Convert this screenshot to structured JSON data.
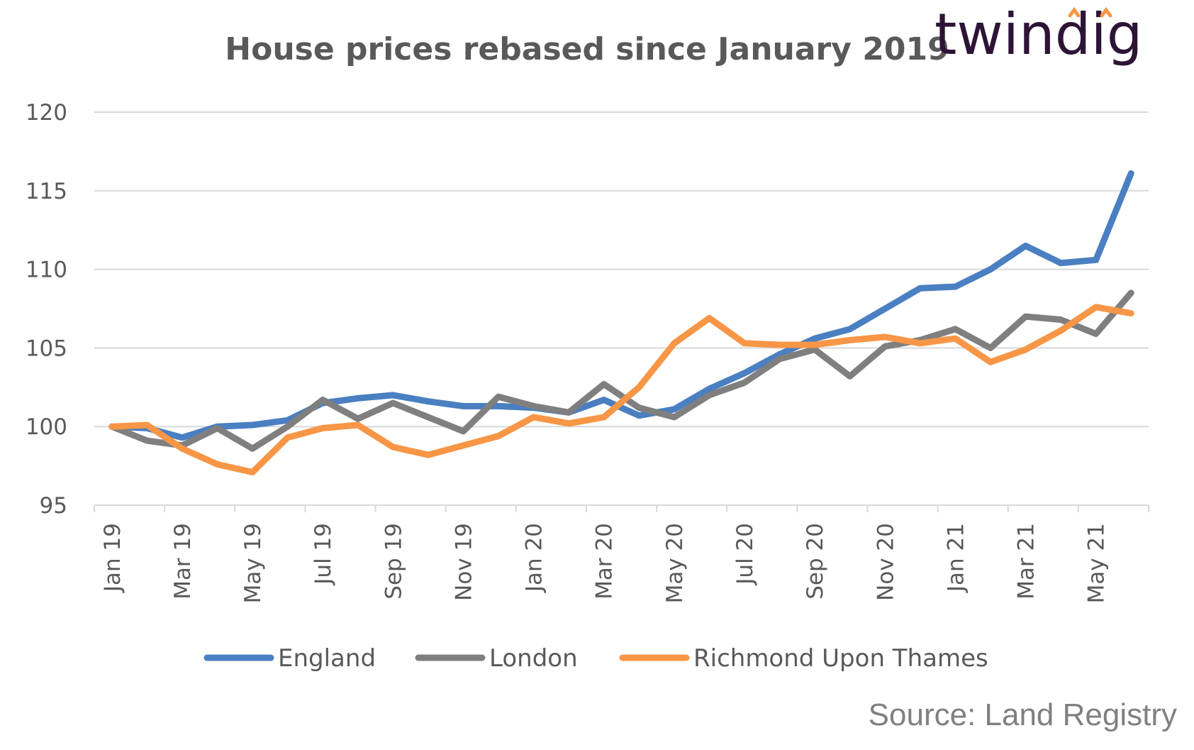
{
  "chart_data": {
    "type": "line",
    "title": "House prices rebased since January 2019",
    "xlabel": "",
    "ylabel": "",
    "ylim": [
      95,
      120
    ],
    "yticks": [
      95,
      100,
      105,
      110,
      115,
      120
    ],
    "grid": true,
    "legend_position": "bottom",
    "x": [
      "Jan 19",
      "Feb 19",
      "Mar 19",
      "Apr 19",
      "May 19",
      "Jun 19",
      "Jul 19",
      "Aug 19",
      "Sep 19",
      "Oct 19",
      "Nov 19",
      "Dec 19",
      "Jan 20",
      "Feb 20",
      "Mar 20",
      "Apr 20",
      "May 20",
      "Jun 20",
      "Jul 20",
      "Aug 20",
      "Sep 20",
      "Oct 20",
      "Nov 20",
      "Dec 20",
      "Jan 21",
      "Feb 21",
      "Mar 21",
      "Apr 21",
      "May 21",
      "Jun 21"
    ],
    "x_tick_labels": [
      "Jan 19",
      "Mar 19",
      "May 19",
      "Jul 19",
      "Sep 19",
      "Nov 19",
      "Jan 20",
      "Mar 20",
      "May 20",
      "Jul 20",
      "Sep 20",
      "Nov 20",
      "Jan 21",
      "Mar 21",
      "May 21"
    ],
    "series": [
      {
        "name": "England",
        "color": "#4a7fc1",
        "values": [
          100.0,
          99.9,
          99.3,
          100.0,
          100.1,
          100.4,
          101.5,
          101.8,
          102.0,
          101.6,
          101.3,
          101.3,
          101.2,
          100.9,
          101.7,
          100.7,
          101.1,
          102.4,
          103.4,
          104.6,
          105.6,
          106.2,
          107.5,
          108.8,
          108.9,
          110.0,
          111.5,
          110.4,
          110.6,
          116.1
        ]
      },
      {
        "name": "London",
        "color": "#7f7f7f",
        "values": [
          100.0,
          99.1,
          98.8,
          99.9,
          98.6,
          100.0,
          101.7,
          100.5,
          101.5,
          100.6,
          99.7,
          101.9,
          101.3,
          100.9,
          102.7,
          101.2,
          100.6,
          102.0,
          102.8,
          104.3,
          104.9,
          103.2,
          105.1,
          105.5,
          106.2,
          105.0,
          107.0,
          106.8,
          105.9,
          108.5
        ]
      },
      {
        "name": "Richmond Upon Thames",
        "color": "#f79646",
        "values": [
          100.0,
          100.1,
          98.6,
          97.6,
          97.1,
          99.3,
          99.9,
          100.1,
          98.7,
          98.2,
          98.8,
          99.4,
          100.6,
          100.2,
          100.6,
          102.5,
          105.3,
          106.9,
          105.3,
          105.2,
          105.2,
          105.5,
          105.7,
          105.3,
          105.6,
          104.1,
          104.9,
          106.1,
          107.6,
          107.2
        ]
      }
    ]
  },
  "logo": {
    "text": "twindig",
    "accent_color": "#f79646"
  },
  "source": {
    "text": "Source: Land Registry"
  }
}
